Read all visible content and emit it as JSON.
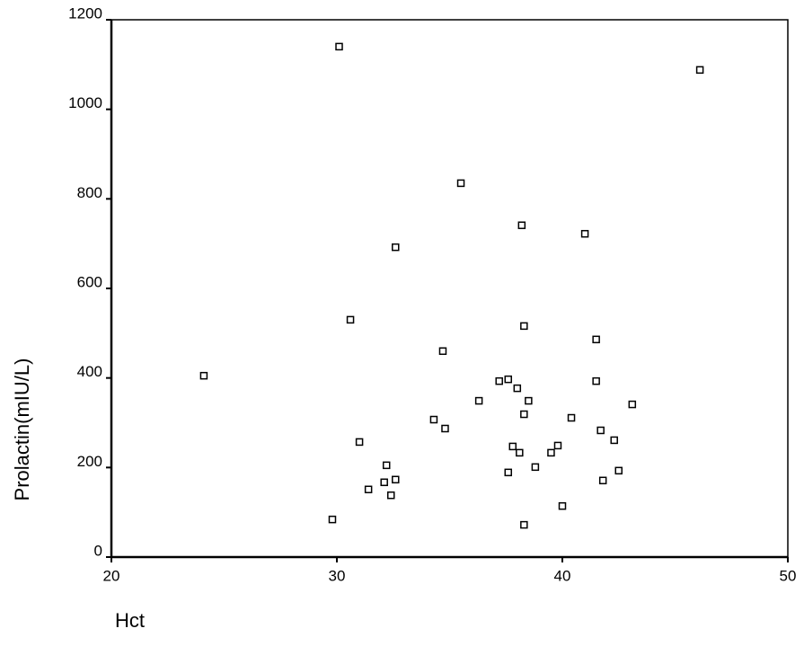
{
  "chart_data": {
    "type": "scatter",
    "x_label": "Hct",
    "y_label": "Prolactin(mIU/L)",
    "xlim": [
      20,
      50
    ],
    "xticks": [
      20,
      30,
      40,
      50
    ],
    "ylim": [
      0,
      1200
    ],
    "yticks": [
      0,
      200,
      400,
      600,
      800,
      1000,
      1200
    ],
    "color": "#000000",
    "x": [
      24.1,
      30.1,
      46.1,
      35.5,
      38.2,
      41.0,
      32.6,
      30.6,
      38.3,
      41.5,
      34.7,
      37.2,
      37.6,
      38.0,
      41.5,
      36.3,
      38.5,
      43.1,
      34.3,
      34.8,
      38.3,
      40.4,
      41.7,
      31.0,
      37.8,
      38.1,
      39.8,
      39.5,
      42.3,
      37.6,
      38.8,
      42.5,
      32.2,
      41.8,
      32.1,
      32.6,
      31.4,
      32.4,
      40.0,
      29.8,
      38.3
    ],
    "values": [
      405,
      1140,
      1088,
      835,
      741,
      722,
      692,
      530,
      516,
      486,
      460,
      393,
      397,
      377,
      393,
      349,
      349,
      341,
      307,
      287,
      319,
      311,
      283,
      257,
      247,
      233,
      249,
      233,
      261,
      189,
      201,
      193,
      205,
      171,
      167,
      173,
      151,
      138,
      114,
      84,
      72
    ]
  }
}
